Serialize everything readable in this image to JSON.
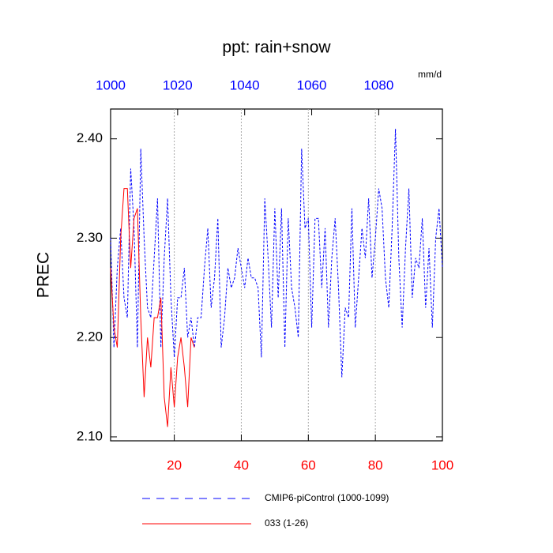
{
  "chart_data": {
    "type": "line",
    "title": "ppt: rain+snow",
    "y_label": "PREC",
    "x2_label": "mm/d",
    "xlim": [
      1,
      100
    ],
    "xticks": [
      20,
      40,
      60,
      80,
      100
    ],
    "x_tick_color": "#ff0000",
    "x2lim": [
      1000,
      1099
    ],
    "x2ticks": [
      1000,
      1020,
      1040,
      1060,
      1080
    ],
    "x2_tick_color": "#0000ff",
    "ylim": [
      2.096,
      2.43
    ],
    "yticks": [
      {
        "value": 2.1,
        "label": "2.10"
      },
      {
        "value": 2.2,
        "label": "2.20"
      },
      {
        "value": 2.3,
        "label": "2.30"
      },
      {
        "value": 2.4,
        "label": "2.40"
      }
    ],
    "grid": true,
    "series": [
      {
        "name": "CMIP6-piControl (1000-1099)",
        "color": "#0000ff",
        "line_style": "dashed",
        "axis": "x2",
        "x": [
          1000,
          1001,
          1002,
          1003,
          1004,
          1005,
          1006,
          1007,
          1008,
          1009,
          1010,
          1011,
          1012,
          1013,
          1014,
          1015,
          1016,
          1017,
          1018,
          1019,
          1020,
          1021,
          1022,
          1023,
          1024,
          1025,
          1026,
          1027,
          1028,
          1029,
          1030,
          1031,
          1032,
          1033,
          1034,
          1035,
          1036,
          1037,
          1038,
          1039,
          1040,
          1041,
          1042,
          1043,
          1044,
          1045,
          1046,
          1047,
          1048,
          1049,
          1050,
          1051,
          1052,
          1053,
          1054,
          1055,
          1056,
          1057,
          1058,
          1059,
          1060,
          1061,
          1062,
          1063,
          1064,
          1065,
          1066,
          1067,
          1068,
          1069,
          1070,
          1071,
          1072,
          1073,
          1074,
          1075,
          1076,
          1077,
          1078,
          1079,
          1080,
          1081,
          1082,
          1083,
          1084,
          1085,
          1086,
          1087,
          1088,
          1089,
          1090,
          1091,
          1092,
          1093,
          1094,
          1095,
          1096,
          1097,
          1098,
          1099
        ],
        "values": [
          2.3,
          2.19,
          2.27,
          2.31,
          2.24,
          2.22,
          2.37,
          2.31,
          2.19,
          2.39,
          2.3,
          2.23,
          2.22,
          2.28,
          2.34,
          2.19,
          2.28,
          2.34,
          2.24,
          2.18,
          2.24,
          2.24,
          2.27,
          2.2,
          2.22,
          2.19,
          2.22,
          2.22,
          2.27,
          2.31,
          2.23,
          2.26,
          2.32,
          2.19,
          2.22,
          2.27,
          2.25,
          2.26,
          2.29,
          2.27,
          2.25,
          2.28,
          2.26,
          2.26,
          2.25,
          2.18,
          2.34,
          2.28,
          2.21,
          2.33,
          2.24,
          2.33,
          2.19,
          2.32,
          2.25,
          2.23,
          2.2,
          2.39,
          2.31,
          2.32,
          2.21,
          2.32,
          2.32,
          2.25,
          2.31,
          2.21,
          2.28,
          2.32,
          2.25,
          2.16,
          2.23,
          2.22,
          2.33,
          2.21,
          2.26,
          2.31,
          2.28,
          2.34,
          2.26,
          2.3,
          2.35,
          2.33,
          2.26,
          2.23,
          2.31,
          2.41,
          2.28,
          2.21,
          2.29,
          2.35,
          2.24,
          2.28,
          2.27,
          2.32,
          2.23,
          2.29,
          2.21,
          2.3,
          2.33,
          2.27
        ]
      },
      {
        "name": "033 (1-26)",
        "color": "#ff0000",
        "line_style": "solid",
        "axis": "x",
        "x": [
          1,
          2,
          3,
          4,
          5,
          6,
          7,
          8,
          9,
          10,
          11,
          12,
          13,
          14,
          15,
          16,
          17,
          18,
          19,
          20,
          21,
          22,
          23,
          24,
          25,
          26
        ],
        "values": [
          2.27,
          2.21,
          2.19,
          2.3,
          2.35,
          2.35,
          2.27,
          2.32,
          2.33,
          2.22,
          2.14,
          2.2,
          2.17,
          2.22,
          2.22,
          2.24,
          2.14,
          2.11,
          2.17,
          2.13,
          2.18,
          2.2,
          2.17,
          2.13,
          2.2,
          2.19
        ]
      }
    ]
  }
}
